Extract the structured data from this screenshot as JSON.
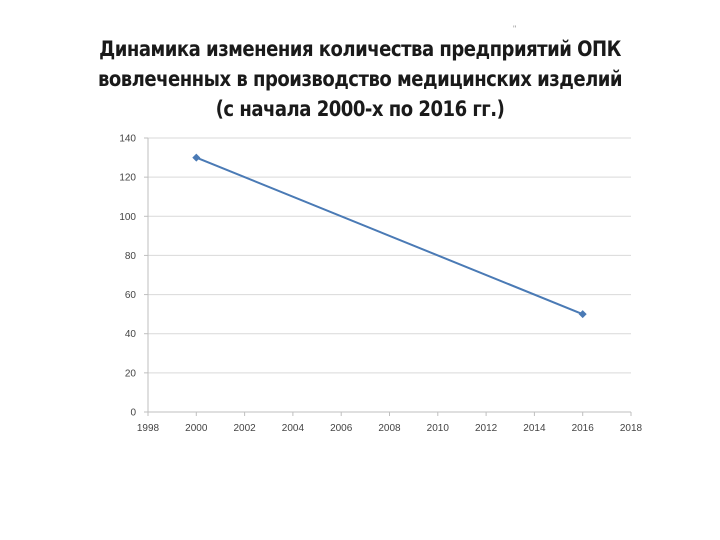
{
  "title_lines": [
    "Динамика изменения количества предприятий ОПК",
    "вовлеченных в производство медицинских изделий",
    "(с начала 2000-х по 2016 гг.)"
  ],
  "tiny_mark": "\"",
  "colors": {
    "series": "#4a7ab5",
    "grid": "#d9d9d9",
    "axis": "#bfbfbf"
  },
  "chart_data": {
    "type": "line",
    "title": "Динамика изменения количества предприятий ОПК вовлеченных в производство медицинских изделий (с начала 2000-х по 2016 гг.)",
    "xlabel": "",
    "ylabel": "",
    "xlim": [
      1998,
      2018
    ],
    "ylim": [
      0,
      140
    ],
    "x_ticks": [
      1998,
      2000,
      2002,
      2004,
      2006,
      2008,
      2010,
      2012,
      2014,
      2016,
      2018
    ],
    "y_ticks": [
      0,
      20,
      40,
      60,
      80,
      100,
      120,
      140
    ],
    "grid": "horizontal",
    "legend": "none",
    "series": [
      {
        "x": [
          2000,
          2016
        ],
        "values": [
          130,
          50
        ]
      }
    ]
  }
}
